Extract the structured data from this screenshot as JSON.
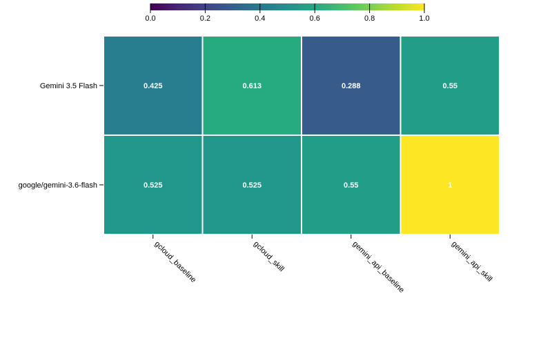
{
  "chart_data": {
    "type": "heatmap",
    "colormap": "viridis",
    "x_categories": [
      "gcloud_baseline",
      "gcloud_skill",
      "gemini_api_baseline",
      "gemini_api_skill"
    ],
    "y_categories": [
      "Gemini 3.5 Flash",
      "google/gemini-3.6-flash"
    ],
    "values": [
      [
        0.425,
        0.613,
        0.288,
        0.55
      ],
      [
        0.525,
        0.525,
        0.55,
        1
      ]
    ],
    "cell_labels": [
      [
        "0.425",
        "0.613",
        "0.288",
        "0.55"
      ],
      [
        "0.525",
        "0.525",
        "0.55",
        "1"
      ]
    ],
    "colorbar": {
      "range": [
        0,
        1
      ],
      "ticks": [
        "0.0",
        "0.2",
        "0.4",
        "0.6",
        "0.8",
        "1.0"
      ],
      "placement": "top"
    },
    "title": "",
    "xlabel": "",
    "ylabel": ""
  }
}
